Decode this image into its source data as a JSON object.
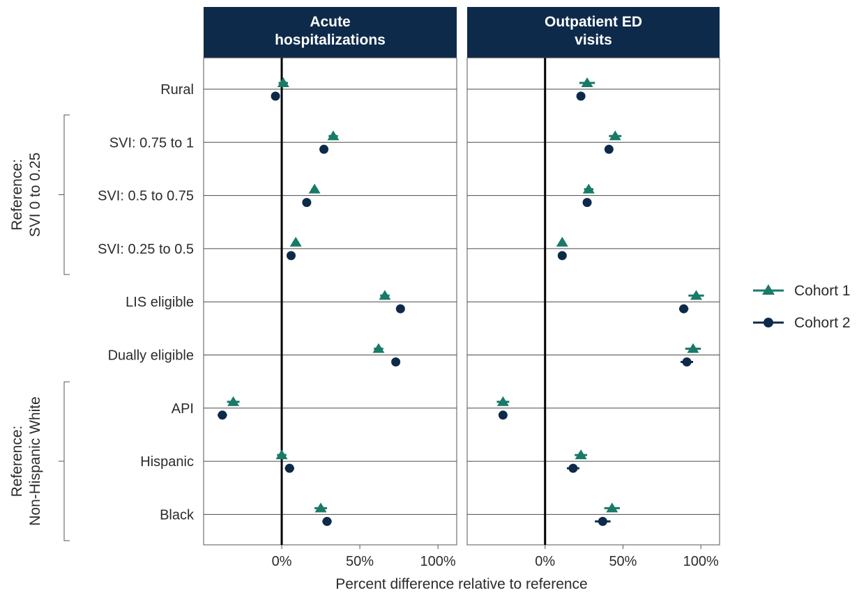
{
  "chart_data": {
    "type": "scatter",
    "subtype": "dot-plot with error bars, faceted",
    "x_axis_title": "Percent difference relative to reference",
    "xlim": [
      -50,
      112
    ],
    "x_ticks": [
      0,
      50,
      100
    ],
    "x_tick_labels": [
      "0%",
      "50%",
      "100%"
    ],
    "grid": "horizontal lines at each category",
    "legend_position": "right",
    "categories": [
      "Rural",
      "SVI: 0.75 to 1",
      "SVI: 0.5 to 0.75",
      "SVI: 0.25 to 0.5",
      "LIS eligible",
      "Dually eligible",
      "API",
      "Hispanic",
      "Black"
    ],
    "groups": [
      {
        "label": "Reference:\nSVI 0 to 0.25",
        "lines": [
          "Reference:",
          "SVI 0 to 0.25"
        ],
        "categories": [
          "SVI: 0.75 to 1",
          "SVI: 0.5 to 0.75",
          "SVI: 0.25 to 0.5"
        ]
      },
      {
        "label": "Reference:\nNon-Hispanic White",
        "lines": [
          "Reference:",
          "Non-Hispanic White"
        ],
        "categories": [
          "API",
          "Hispanic",
          "Black"
        ]
      }
    ],
    "panels": [
      {
        "title_lines": [
          "Acute",
          "hospitalizations"
        ],
        "series": [
          {
            "name": "Cohort 1",
            "color": "#1a7a68",
            "marker": "triangle",
            "values": [
              1,
              33,
              21,
              9,
              66,
              62,
              -31,
              0,
              25
            ],
            "err": [
              3,
              3,
              2,
              2,
              3,
              3,
              4,
              3,
              4
            ]
          },
          {
            "name": "Cohort 2",
            "color": "#0e2a4a",
            "marker": "circle",
            "values": [
              -4,
              27,
              16,
              6,
              76,
              73,
              -38,
              5,
              29
            ],
            "err": [
              2,
              2,
              2,
              2,
              2,
              2,
              3,
              3,
              3
            ]
          }
        ]
      },
      {
        "title_lines": [
          "Outpatient ED",
          "visits"
        ],
        "series": [
          {
            "name": "Cohort 1",
            "color": "#1a7a68",
            "marker": "triangle",
            "values": [
              27,
              45,
              28,
              11,
              97,
              95,
              -27,
              23,
              43
            ],
            "err": [
              5,
              4,
              3,
              2,
              5,
              5,
              4,
              4,
              5
            ]
          },
          {
            "name": "Cohort 2",
            "color": "#0e2a4a",
            "marker": "circle",
            "values": [
              23,
              41,
              27,
              11,
              89,
              91,
              -27,
              18,
              37
            ],
            "err": [
              2,
              2,
              2,
              2,
              3,
              4,
              2,
              4,
              5
            ]
          }
        ]
      }
    ],
    "legend": [
      {
        "name": "Cohort 1",
        "color": "#1a7a68",
        "marker": "triangle"
      },
      {
        "name": "Cohort 2",
        "color": "#0e2a4a",
        "marker": "circle"
      }
    ],
    "colors": {
      "header_bg": "#0e2a4a",
      "header_text": "#ffffff",
      "reference_line": "#000000"
    }
  }
}
